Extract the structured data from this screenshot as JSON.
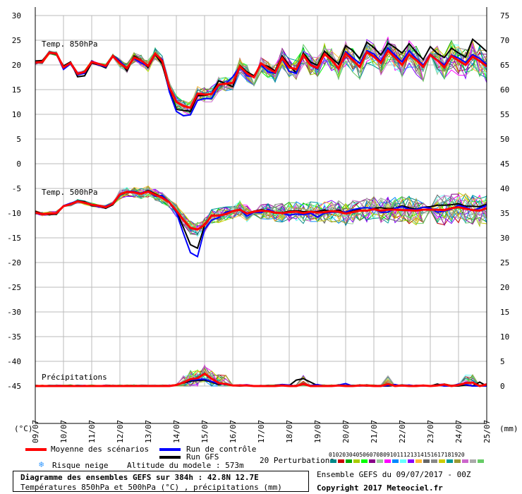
{
  "chart_data": {
    "type": "line",
    "title": "Diagramme des ensembles GEFS sur 384h : 42.8N 12.7E",
    "subtitle": "Températures 850hPa et 500hPa (°C) , précipitations (mm)",
    "x_tick_labels": [
      "09/07",
      "10/07",
      "11/07",
      "12/07",
      "13/07",
      "14/07",
      "15/07",
      "16/07",
      "17/07",
      "18/07",
      "19/07",
      "20/07",
      "21/07",
      "22/07",
      "23/07",
      "24/07",
      "25/07"
    ],
    "x_unit": "time (6h steps)",
    "y_left_ticks": [
      30,
      25,
      20,
      15,
      10,
      5,
      0,
      -5,
      -10,
      -15,
      -20,
      -25,
      -30,
      -35,
      -40,
      -45
    ],
    "y_right_ticks": [
      75,
      70,
      65,
      60,
      55,
      50,
      45,
      40,
      35,
      30,
      25,
      20,
      15,
      10,
      5,
      0
    ],
    "y_left_unit": "(°C)",
    "y_right_unit": "(mm)",
    "grid": true,
    "panels": [
      {
        "name": "Temp. 850hPa",
        "mean": [
          20.5,
          20.6,
          22.5,
          22.3,
          19.5,
          20.4,
          18.2,
          18.6,
          20.6,
          20.2,
          19.8,
          21.8,
          20.3,
          19.3,
          21.5,
          20.9,
          19.8,
          22.3,
          20.8,
          15.5,
          12.5,
          11.7,
          11.3,
          14.2,
          14.0,
          14.1,
          16.0,
          16.2,
          16.4,
          19.7,
          18.3,
          17.5,
          20.3,
          19.3,
          18.5,
          21.4,
          19.5,
          19.1,
          22.0,
          20.0,
          19.4,
          22.2,
          21.0,
          19.3,
          22.3,
          21.0,
          19.6,
          22.6,
          21.7,
          20.4,
          22.9,
          21.5,
          20.0,
          22.1,
          21.0,
          19.6,
          22.0,
          20.9,
          19.5,
          21.8,
          20.9,
          20.0,
          21.7,
          20.8,
          19.7
        ],
        "control": [
          20.6,
          20.5,
          22.6,
          22.2,
          19.1,
          20.2,
          18.0,
          18.3,
          20.8,
          20.0,
          19.6,
          21.9,
          20.7,
          19.4,
          21.3,
          20.4,
          19.8,
          22.1,
          21.1,
          14.6,
          10.6,
          9.7,
          9.9,
          12.8,
          13.2,
          13.2,
          15.8,
          16.2,
          17.6,
          19.7,
          17.8,
          17.6,
          20.0,
          18.6,
          18.3,
          21.2,
          18.7,
          18.3,
          21.8,
          20.3,
          19.1,
          22.3,
          20.9,
          19.2,
          22.7,
          21.5,
          20.3,
          22.9,
          22.2,
          20.7,
          23.4,
          22.0,
          20.6,
          22.9,
          21.3,
          20.0,
          22.2,
          21.0,
          20.0,
          22.0,
          21.4,
          20.5,
          22.1,
          21.3,
          20.1
        ],
        "gfs": [
          20.8,
          20.9,
          22.4,
          22.2,
          19.8,
          20.6,
          17.6,
          17.8,
          20.4,
          20.0,
          19.4,
          21.9,
          20.8,
          18.8,
          21.8,
          21.0,
          19.5,
          22.1,
          20.2,
          14.8,
          11.0,
          10.8,
          10.6,
          13.8,
          13.8,
          14.2,
          16.8,
          16.2,
          15.6,
          19.9,
          18.6,
          17.8,
          20.1,
          19.7,
          18.8,
          21.8,
          19.9,
          18.4,
          22.4,
          20.6,
          19.9,
          22.8,
          21.4,
          20.2,
          23.9,
          22.9,
          21.3,
          24.6,
          23.5,
          22.0,
          24.4,
          23.5,
          22.4,
          24.3,
          22.6,
          21.1,
          23.7,
          22.3,
          21.5,
          23.4,
          22.4,
          21.6,
          25.2,
          24.0,
          22.7
        ]
      },
      {
        "name": "Temp. 500hPa",
        "mean": [
          -9.9,
          -10.2,
          -10.1,
          -10.0,
          -8.6,
          -8.2,
          -7.6,
          -7.9,
          -8.3,
          -8.5,
          -8.8,
          -8.1,
          -6.2,
          -5.7,
          -5.8,
          -6.1,
          -5.6,
          -6.3,
          -6.9,
          -7.8,
          -9.5,
          -11.4,
          -13.0,
          -13.3,
          -12.4,
          -10.5,
          -10.5,
          -10.2,
          -9.6,
          -9.3,
          -10.1,
          -9.7,
          -9.5,
          -9.6,
          -9.9,
          -10.0,
          -9.8,
          -9.7,
          -10.0,
          -9.7,
          -9.9,
          -9.8,
          -9.6,
          -9.7,
          -10.1,
          -9.8,
          -9.5,
          -9.5,
          -9.2,
          -9.5,
          -9.3,
          -9.3,
          -9.4,
          -9.4,
          -9.5,
          -9.3,
          -9.3,
          -9.3,
          -9.4,
          -9.0,
          -8.8,
          -9.1,
          -9.4,
          -9.5,
          -9.0
        ],
        "control": [
          -10.0,
          -10.3,
          -10.1,
          -10.1,
          -8.5,
          -8.0,
          -7.6,
          -7.9,
          -8.3,
          -8.7,
          -8.6,
          -8.0,
          -6.4,
          -5.6,
          -5.6,
          -6.0,
          -5.5,
          -6.6,
          -6.4,
          -7.9,
          -9.9,
          -14.1,
          -18.0,
          -18.8,
          -13.3,
          -11.4,
          -10.9,
          -9.8,
          -9.5,
          -9.3,
          -10.6,
          -9.8,
          -9.9,
          -9.3,
          -9.8,
          -10.0,
          -10.4,
          -10.2,
          -10.3,
          -10.0,
          -10.8,
          -10.0,
          -9.8,
          -9.8,
          -9.8,
          -9.3,
          -9.0,
          -8.9,
          -9.1,
          -9.8,
          -9.8,
          -9.0,
          -8.7,
          -9.2,
          -9.3,
          -8.8,
          -9.0,
          -9.8,
          -9.6,
          -9.2,
          -8.4,
          -8.8,
          -9.4,
          -9.0,
          -8.4
        ],
        "gfs": [
          -9.7,
          -10.1,
          -10.3,
          -10.2,
          -8.6,
          -8.3,
          -7.5,
          -7.7,
          -8.5,
          -8.6,
          -9.0,
          -8.3,
          -6.3,
          -5.8,
          -5.8,
          -6.1,
          -5.4,
          -6.1,
          -6.8,
          -7.7,
          -9.6,
          -12.9,
          -16.4,
          -17.1,
          -12.5,
          -10.6,
          -10.4,
          -10.3,
          -9.6,
          -9.4,
          -10.1,
          -9.6,
          -9.3,
          -9.6,
          -10.0,
          -9.9,
          -9.6,
          -9.5,
          -9.7,
          -9.7,
          -9.7,
          -9.4,
          -9.6,
          -9.4,
          -10.0,
          -9.4,
          -9.3,
          -9.6,
          -9.0,
          -8.9,
          -9.1,
          -9.0,
          -8.5,
          -8.9,
          -9.2,
          -8.8,
          -8.7,
          -8.4,
          -8.4,
          -8.3,
          -8.1,
          -8.6,
          -8.6,
          -8.7,
          -8.2
        ]
      },
      {
        "name": "Précipitations",
        "mean": [
          0.0,
          0.0,
          0.0,
          0.0,
          0.0,
          0.0,
          0.0,
          0.0,
          0.0,
          0.0,
          0.0,
          0.0,
          0.0,
          0.0,
          0.0,
          0.0,
          0.0,
          0.0,
          0.0,
          0.0,
          0.2,
          0.7,
          1.4,
          1.6,
          2.5,
          1.5,
          0.6,
          0.4,
          0.1,
          0.1,
          0.1,
          0.0,
          0.0,
          0.0,
          0.0,
          0.1,
          0.0,
          0.0,
          0.4,
          0.0,
          0.0,
          0.0,
          0.0,
          0.1,
          0.0,
          0.0,
          0.1,
          0.1,
          0.0,
          0.0,
          0.4,
          0.0,
          0.1,
          0.0,
          0.0,
          0.1,
          0.0,
          0.1,
          0.3,
          0.0,
          0.2,
          0.6,
          0.7,
          0.0,
          0.3
        ],
        "control": [
          0.0,
          0.0,
          0.0,
          0.0,
          0.0,
          0.0,
          0.0,
          0.0,
          0.0,
          0.0,
          0.0,
          0.0,
          0.0,
          0.0,
          0.0,
          0.0,
          0.0,
          0.0,
          0.0,
          0.0,
          0.2,
          0.8,
          1.2,
          1.3,
          1.4,
          0.9,
          0.5,
          0.3,
          0.1,
          0.1,
          0.1,
          0.0,
          0.0,
          0.1,
          0.0,
          0.3,
          0.2,
          0.0,
          0.4,
          0.1,
          0.3,
          0.0,
          0.0,
          0.2,
          0.5,
          0.0,
          0.0,
          0.1,
          0.0,
          0.0,
          0.1,
          0.3,
          0.0,
          0.2,
          0.0,
          0.0,
          0.0,
          0.2,
          0.0,
          0.0,
          0.4,
          0.3,
          0.0,
          0.0,
          0.0
        ],
        "gfs": [
          0.0,
          0.0,
          0.0,
          0.0,
          0.0,
          0.0,
          0.0,
          0.0,
          0.0,
          0.0,
          0.0,
          0.0,
          0.0,
          0.0,
          0.0,
          0.0,
          0.0,
          0.0,
          0.0,
          0.0,
          0.2,
          0.6,
          1.0,
          1.1,
          1.2,
          0.8,
          0.3,
          0.5,
          0.1,
          0.0,
          0.1,
          0.0,
          0.0,
          0.0,
          0.1,
          0.3,
          0.1,
          1.2,
          1.5,
          0.8,
          0.1,
          0.0,
          0.0,
          0.1,
          0.0,
          0.0,
          0.1,
          0.0,
          0.0,
          0.0,
          0.0,
          0.1,
          0.0,
          0.0,
          0.1,
          0.0,
          0.0,
          0.4,
          0.0,
          0.0,
          0.0,
          0.2,
          0.0,
          0.8,
          0.0
        ]
      }
    ],
    "legend": {
      "mean": "Moyenne des scénarios",
      "control": "Run de contrôle",
      "gfs": "Run GFS",
      "perturbations": "20 Perturbations",
      "snow": "Risque neige",
      "altitude": "Altitude du modele : 573m"
    },
    "perturbation_ids": [
      "01",
      "02",
      "03",
      "04",
      "05",
      "06",
      "07",
      "08",
      "09",
      "10",
      "11",
      "12",
      "13",
      "14",
      "15",
      "16",
      "17",
      "18",
      "19",
      "20"
    ],
    "colors": {
      "mean": "#ff0000",
      "control": "#0000ff",
      "gfs": "#000000",
      "grid": "#bbbbbb",
      "perturbations": [
        "#008888",
        "#cc0000",
        "#00aa00",
        "#aacc00",
        "#00ff00",
        "#880088",
        "#99cc99",
        "#ff00ff",
        "#0088ff",
        "#66ffff",
        "#8800ff",
        "#ffbb33",
        "#666666",
        "#888888",
        "#cccc00",
        "#009999",
        "#999933",
        "#cc66cc",
        "#aaaaaa",
        "#66cc66"
      ]
    }
  },
  "footer": {
    "title": "Diagramme des ensembles GEFS sur 384h : 42.8N 12.7E",
    "subtitle": "Températures 850hPa et 500hPa (°C) , précipitations (mm)",
    "run": "Ensemble GEFS du 09/07/2017 - 00Z",
    "copyright": "Copyright 2017 Meteociel.fr"
  }
}
